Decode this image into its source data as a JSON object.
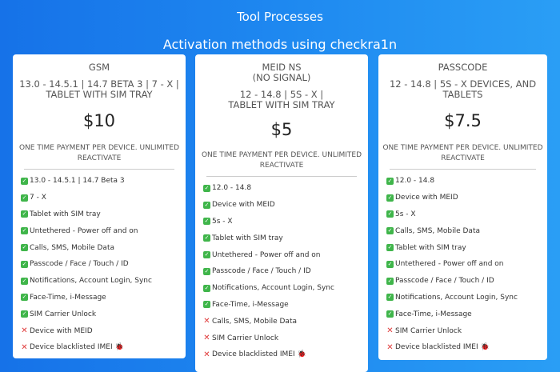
{
  "header": {
    "title": "Tool Processes",
    "subtitle": "Activation methods using checkra1n"
  },
  "cards": [
    {
      "name": "GSM",
      "desc1": "13.0 - 14.5.1 | 14.7 BETA 3 | 7 - X |",
      "desc2": "TABLET WITH SIM TRAY",
      "price": "$10",
      "note1": "ONE TIME PAYMENT PER DEVICE. UNLIMITED",
      "note2": "REACTIVATE",
      "features": [
        {
          "text": "13.0 - 14.5.1 | 14.7 Beta 3",
          "ok": true
        },
        {
          "text": "7 - X",
          "ok": true
        },
        {
          "text": "Tablet with SIM tray",
          "ok": true
        },
        {
          "text": "Untethered - Power off and on",
          "ok": true
        },
        {
          "text": "Calls, SMS, Mobile Data",
          "ok": true
        },
        {
          "text": "Passcode / Face / Touch / ID",
          "ok": true
        },
        {
          "text": "Notifications, Account Login, Sync",
          "ok": true
        },
        {
          "text": "Face-Time, i-Message",
          "ok": true
        },
        {
          "text": "SIM Carrier Unlock",
          "ok": true
        },
        {
          "text": "Device with MEID",
          "ok": false
        },
        {
          "text": "Device blacklisted IMEI",
          "ok": false,
          "bug": "🐞"
        }
      ]
    },
    {
      "name": "MEID NS",
      "name2": "(NO SIGNAL)",
      "desc1": "12 - 14.8 | 5S - X |",
      "desc2": "TABLET WITH SIM TRAY",
      "price": "$5",
      "note1": "ONE TIME PAYMENT PER DEVICE. UNLIMITED",
      "note2": "REACTIVATE",
      "features": [
        {
          "text": "12.0 - 14.8",
          "ok": true
        },
        {
          "text": "Device with MEID",
          "ok": true
        },
        {
          "text": "5s - X",
          "ok": true
        },
        {
          "text": "Tablet with SIM tray",
          "ok": true
        },
        {
          "text": "Untethered - Power off and on",
          "ok": true
        },
        {
          "text": "Passcode / Face / Touch / ID",
          "ok": true
        },
        {
          "text": "Notifications, Account Login, Sync",
          "ok": true
        },
        {
          "text": "Face-Time, i-Message",
          "ok": true
        },
        {
          "text": "Calls, SMS, Mobile Data",
          "ok": false
        },
        {
          "text": "SIM Carrier Unlock",
          "ok": false
        },
        {
          "text": "Device blacklisted IMEI",
          "ok": false,
          "bug": "🐞"
        }
      ]
    },
    {
      "name": "PASSCODE",
      "desc1": "12 - 14.8 | 5S - X DEVICES, AND",
      "desc2": "TABLETS",
      "price": "$7.5",
      "note1": "ONE TIME PAYMENT PER DEVICE. UNLIMITED",
      "note2": "REACTIVATE",
      "features": [
        {
          "text": "12.0 - 14.8",
          "ok": true
        },
        {
          "text": "Device with MEID",
          "ok": true
        },
        {
          "text": "5s - X",
          "ok": true
        },
        {
          "text": "Calls, SMS, Mobile Data",
          "ok": true
        },
        {
          "text": "Tablet with SIM tray",
          "ok": true
        },
        {
          "text": "Untethered - Power off and on",
          "ok": true
        },
        {
          "text": "Passcode / Face / Touch / ID",
          "ok": true
        },
        {
          "text": "Notifications, Account Login, Sync",
          "ok": true
        },
        {
          "text": "Face-Time, i-Message",
          "ok": true
        },
        {
          "text": "SIM Carrier Unlock",
          "ok": false
        },
        {
          "text": "Device blacklisted IMEI",
          "ok": false,
          "bug": "🐞"
        }
      ]
    }
  ],
  "icons": {
    "check": "check-icon",
    "cross": "cross-icon",
    "bug": "bug-icon"
  },
  "colors": {
    "check": "#3fb54a",
    "cross": "#e03a3a"
  }
}
